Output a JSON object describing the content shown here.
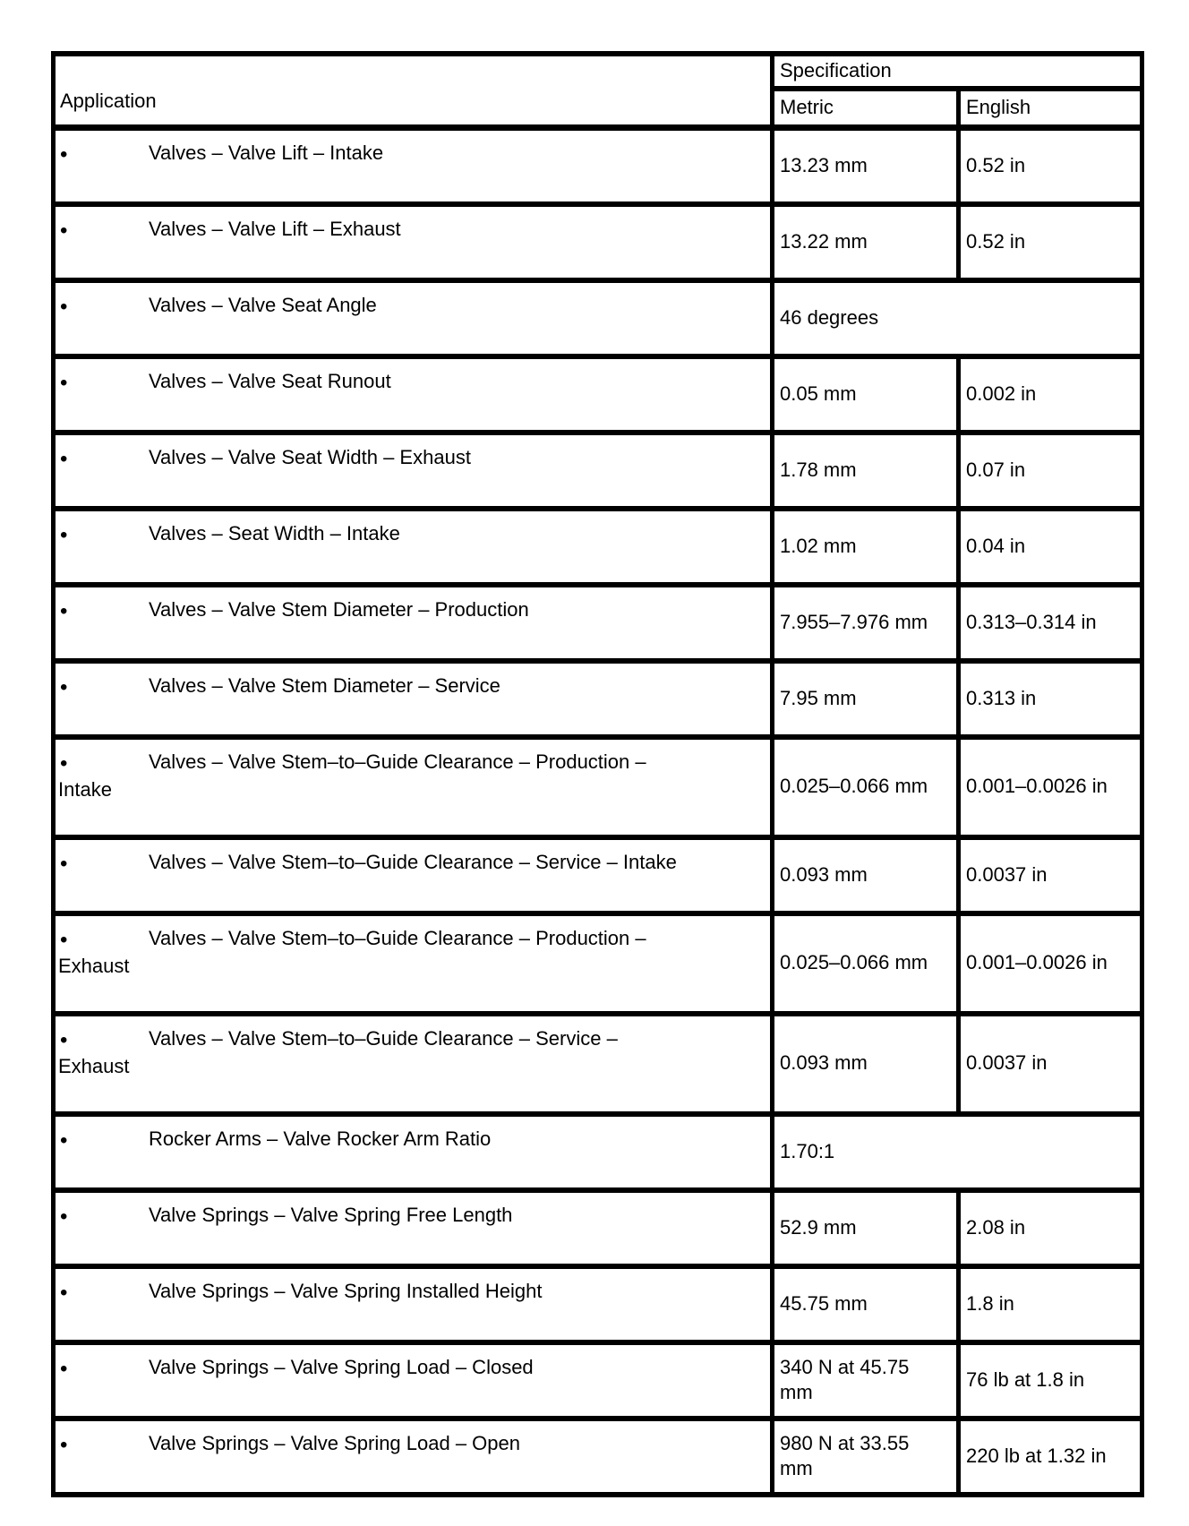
{
  "table": {
    "bullet_glyph": "•",
    "header": {
      "application": "Application",
      "specification": "Specification",
      "metric": "Metric",
      "english": "English"
    },
    "rows": [
      {
        "application": "Valves – Valve Lift – Intake",
        "metric": "13.23 mm",
        "english": "0.52 in"
      },
      {
        "application": "Valves – Valve Lift – Exhaust",
        "metric": "13.22 mm",
        "english": "0.52 in"
      },
      {
        "application": "Valves – Valve Seat Angle",
        "value": "46 degrees"
      },
      {
        "application": "Valves – Valve Seat Runout",
        "metric": "0.05 mm",
        "english": "0.002 in"
      },
      {
        "application": "Valves – Valve Seat Width – Exhaust",
        "metric": "1.78 mm",
        "english": "0.07 in"
      },
      {
        "application": "Valves – Seat Width – Intake",
        "metric": "1.02 mm",
        "english": "0.04 in"
      },
      {
        "application": "Valves – Valve Stem Diameter – Production",
        "metric": "7.955–7.976 mm",
        "english": "0.313–0.314 in"
      },
      {
        "application": "Valves – Valve Stem Diameter – Service",
        "metric": "7.95 mm",
        "english": "0.313 in"
      },
      {
        "application": "Valves – Valve Stem–to–Guide Clearance – Production –",
        "application_line2": "Intake",
        "metric": "0.025–0.066 mm",
        "english": "0.001–0.0026 in"
      },
      {
        "application": "Valves – Valve Stem–to–Guide Clearance – Service – Intake",
        "metric": "0.093 mm",
        "english": "0.0037 in"
      },
      {
        "application": "Valves – Valve Stem–to–Guide Clearance – Production –",
        "application_line2": "Exhaust",
        "metric": "0.025–0.066 mm",
        "english": "0.001–0.0026 in"
      },
      {
        "application": "Valves – Valve Stem–to–Guide Clearance – Service –",
        "application_line2": "Exhaust",
        "metric": "0.093 mm",
        "english": "0.0037 in"
      },
      {
        "application": "Rocker Arms – Valve Rocker Arm Ratio",
        "value": "1.70:1"
      },
      {
        "application": "Valve Springs – Valve Spring Free Length",
        "metric": "52.9 mm",
        "english": "2.08 in"
      },
      {
        "application": "Valve Springs – Valve Spring Installed Height",
        "metric": "45.75 mm",
        "english": "1.8 in"
      },
      {
        "application": "Valve Springs – Valve Spring Load – Closed",
        "metric": "340 N at 45.75 mm",
        "english": "76 lb at 1.8 in"
      },
      {
        "application": "Valve Springs – Valve Spring Load – Open",
        "metric": "980 N at 33.55 mm",
        "english": "220 lb at 1.32 in"
      }
    ]
  }
}
